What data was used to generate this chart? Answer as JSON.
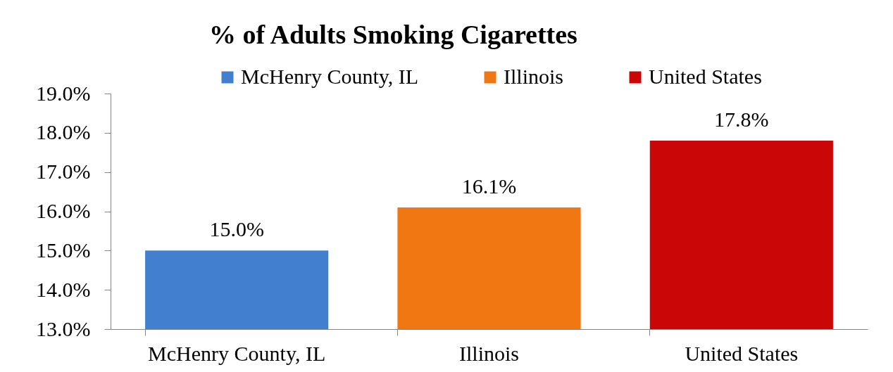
{
  "chart_data": {
    "type": "bar",
    "title": "% of Adults Smoking Cigarettes",
    "categories": [
      "McHenry County, IL",
      "Illinois",
      "United States"
    ],
    "series": [
      {
        "name": "McHenry County, IL",
        "color": "#4280cf",
        "values": [
          15.0,
          null,
          null
        ],
        "value_labels": [
          "15.0%",
          null,
          null
        ]
      },
      {
        "name": "Illinois",
        "color": "#f07712",
        "values": [
          null,
          16.1,
          null
        ],
        "value_labels": [
          null,
          "16.1%",
          null
        ]
      },
      {
        "name": "United States",
        "color": "#ca0606",
        "values": [
          null,
          null,
          17.8
        ],
        "value_labels": [
          null,
          null,
          "17.8%"
        ]
      }
    ],
    "ylim": [
      13,
      19
    ],
    "yticks": [
      {
        "value": 13,
        "label": "13.0%"
      },
      {
        "value": 14,
        "label": "14.0%"
      },
      {
        "value": 15,
        "label": "15.0%"
      },
      {
        "value": 16,
        "label": "16.0%"
      },
      {
        "value": 17,
        "label": "17.0%"
      },
      {
        "value": 18,
        "label": "18.0%"
      },
      {
        "value": 19,
        "label": "19.0%"
      }
    ],
    "grid": false,
    "legend": "top"
  }
}
